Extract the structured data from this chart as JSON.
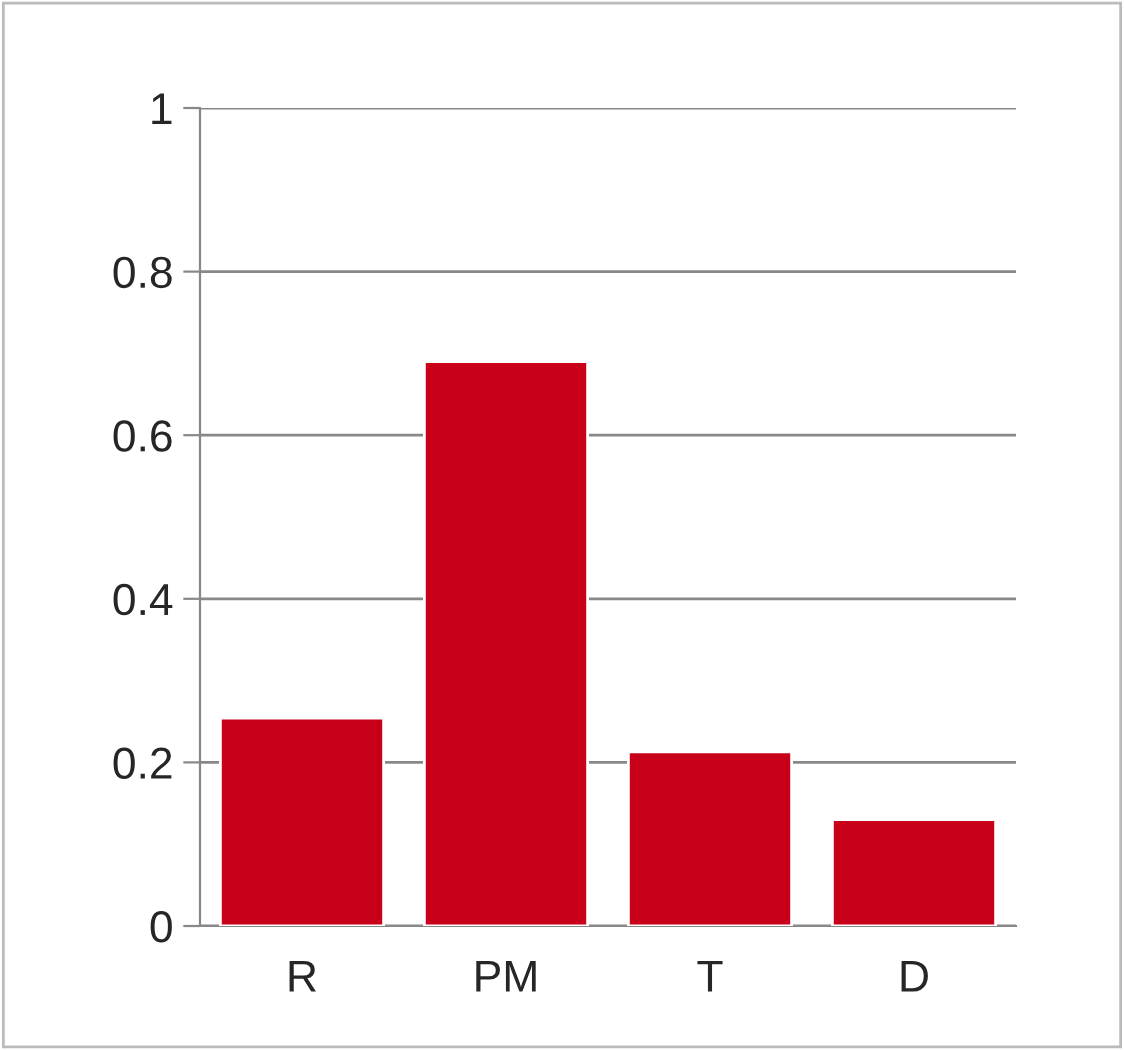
{
  "chart_data": {
    "type": "bar",
    "categories": [
      "R",
      "PM",
      "T",
      "D"
    ],
    "values": [
      0.254,
      0.69,
      0.213,
      0.13
    ],
    "color": "#c8001a",
    "ylim": [
      0,
      1
    ],
    "yticks": [
      0,
      0.2,
      0.4,
      0.6,
      0.8,
      1
    ],
    "grid": "y",
    "legend": false
  }
}
